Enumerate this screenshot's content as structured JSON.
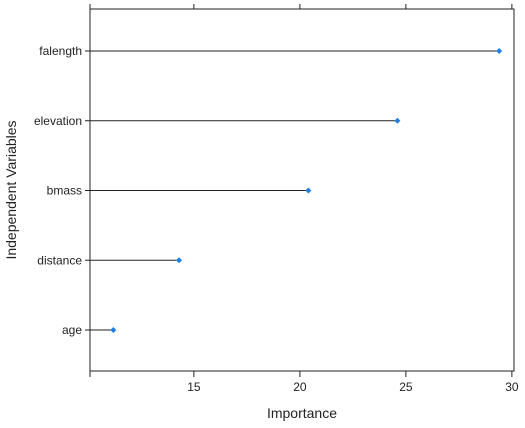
{
  "chart_data": {
    "type": "dot",
    "orientation": "horizontal",
    "xlabel": "Importance",
    "ylabel": "Independent Variables",
    "xlim": [
      10.1,
      30.1
    ],
    "x_ticks": [
      15,
      20,
      25,
      30
    ],
    "categories": [
      "falength",
      "elevation",
      "bmass",
      "distance",
      "age"
    ],
    "values": [
      29.4,
      24.6,
      20.4,
      14.3,
      11.2
    ],
    "colors": {
      "point": "#1f7fe0",
      "segment": "#222222",
      "frame": "#222222"
    },
    "grid": false,
    "legend": "none"
  }
}
